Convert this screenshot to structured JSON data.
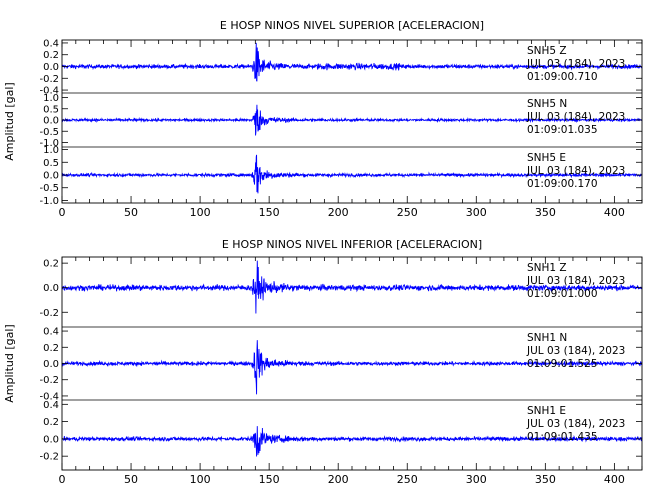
{
  "chart_data": [
    {
      "type": "line",
      "title": "E HOSP NINOS NIVEL SUPERIOR [ACELERACION]",
      "ylabel": "Amplitud [gal]",
      "xlim": [
        0,
        420
      ],
      "x_ticks": [
        0,
        50,
        100,
        150,
        200,
        250,
        300,
        350,
        400
      ],
      "event_x": 140,
      "series_color": "#0000ff",
      "traces": [
        {
          "station": "SNH5",
          "component": "Z",
          "date": "JUL 03 (184), 2023",
          "time": "01:09:00.710",
          "ylim": [
            -0.45,
            0.45
          ],
          "y_ticks": [
            "0.4",
            "0.2",
            "0.0",
            "-0.2",
            "-0.4"
          ],
          "y_tick_values": [
            0.4,
            0.2,
            0.0,
            -0.2,
            -0.4
          ],
          "noise": 0.03,
          "peak": 0.4
        },
        {
          "station": "SNH5",
          "component": "N",
          "date": "JUL 03 (184), 2023",
          "time": "01:09:01.035",
          "ylim": [
            -1.2,
            1.2
          ],
          "y_ticks": [
            "1.0",
            "0.5",
            "0.0",
            "-0.5",
            "-1.0"
          ],
          "y_tick_values": [
            1.0,
            0.5,
            0.0,
            -0.5,
            -1.0
          ],
          "noise": 0.05,
          "peak": 0.9
        },
        {
          "station": "SNH5",
          "component": "E",
          "date": "JUL 03 (184), 2023",
          "time": "01:09:00.170",
          "ylim": [
            -1.1,
            1.1
          ],
          "y_ticks": [
            "1.0",
            "0.5",
            "0.0",
            "-0.5",
            "-1.0"
          ],
          "y_tick_values": [
            1.0,
            0.5,
            0.0,
            -0.5,
            -1.0
          ],
          "noise": 0.05,
          "peak": 1.0
        }
      ]
    },
    {
      "type": "line",
      "title": "E HOSP NINOS NIVEL INFERIOR [ACELERACION]",
      "ylabel": "Amplitud [gal]",
      "xlim": [
        0,
        420
      ],
      "x_ticks": [
        0,
        50,
        100,
        150,
        200,
        250,
        300,
        350,
        400
      ],
      "event_x": 140,
      "series_color": "#0000ff",
      "traces": [
        {
          "station": "SNH1",
          "component": "Z",
          "date": "JUL 03 (184), 2023",
          "time": "01:09:01.000",
          "ylim": [
            -0.32,
            0.25
          ],
          "y_ticks": [
            "0.2",
            "0.0",
            "-0.2"
          ],
          "y_tick_values": [
            0.2,
            0.0,
            -0.2
          ],
          "noise": 0.02,
          "peak": 0.22
        },
        {
          "station": "SNH1",
          "component": "N",
          "date": "JUL 03 (184), 2023",
          "time": "01:09:01.525",
          "ylim": [
            -0.45,
            0.45
          ],
          "y_ticks": [
            "0.4",
            "0.2",
            "0.0",
            "-0.2",
            "-0.4"
          ],
          "y_tick_values": [
            0.4,
            0.2,
            0.0,
            -0.2,
            -0.4
          ],
          "noise": 0.02,
          "peak": 0.38
        },
        {
          "station": "SNH1",
          "component": "E",
          "date": "JUL 03 (184), 2023",
          "time": "01:09:01.435",
          "ylim": [
            -0.36,
            0.45
          ],
          "y_ticks": [
            "0.4",
            "0.2",
            "0.0",
            "-0.2"
          ],
          "y_tick_values": [
            0.4,
            0.2,
            0.0,
            -0.2
          ],
          "noise": 0.02,
          "peak": 0.28
        }
      ]
    }
  ]
}
